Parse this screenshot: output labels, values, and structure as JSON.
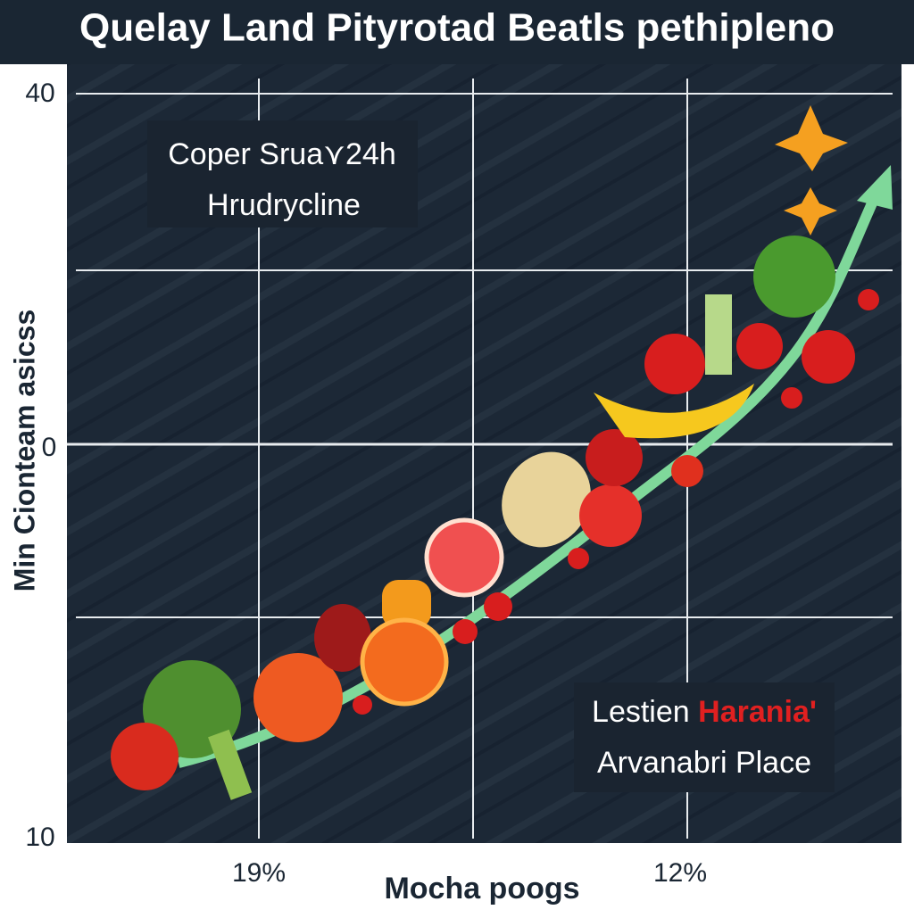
{
  "title": "Quelay Land Pityrotad Beatls pethipleno",
  "callout_top": {
    "line1": "Coper Srua⋎24h",
    "line2": "Hrudrycline"
  },
  "callout_bottom": {
    "line1_a": "Lestien",
    "line1_b": "Harania'",
    "line2": "Arvanabri Place"
  },
  "y_axis": {
    "label": "Min Cionteam asicss",
    "ticks": [
      40,
      0,
      10
    ]
  },
  "x_axis": {
    "label": "Mocha poogs",
    "ticks": [
      "19%",
      "12%"
    ]
  }
}
